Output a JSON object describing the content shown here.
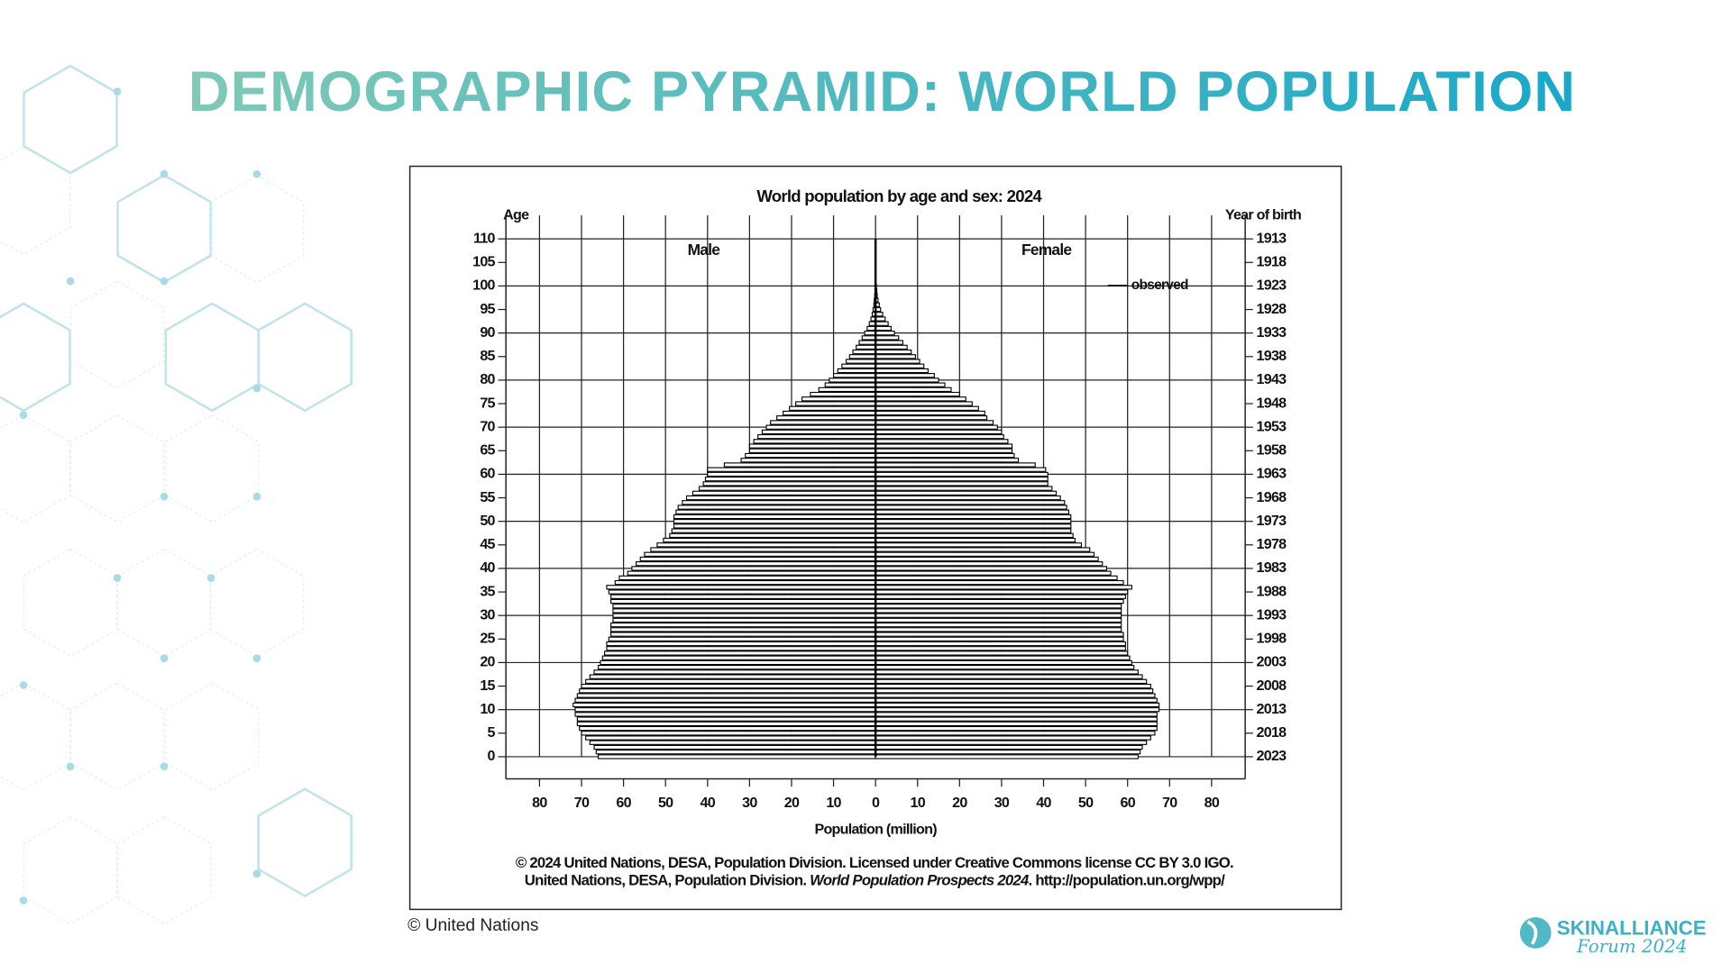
{
  "slide": {
    "title": "DEMOGRAPHIC PYRAMID: WORLD POPULATION",
    "credit": "© United Nations",
    "logo": {
      "name": "SKINALLIANCE",
      "subtitle": "Forum 2024"
    }
  },
  "chart_data": {
    "type": "pyramid",
    "title": "World population by age and sex: 2024",
    "ylabel": "Age",
    "y2label": "Year of birth",
    "xlabel": "Population (million)",
    "footer": [
      "© 2024 United Nations, DESA, Population Division. Licensed under Creative Commons license CC BY 3.0 IGO.",
      [
        "United Nations, DESA, Population Division. ",
        "World Population Prospects 2024",
        ". http://population.un.org/wpp/"
      ]
    ],
    "legend": {
      "label": "observed",
      "position": "top-right"
    },
    "xlim": [
      -88,
      88
    ],
    "xticks": [
      {
        "value": -80,
        "label": "80"
      },
      {
        "value": -70,
        "label": "70"
      },
      {
        "value": -60,
        "label": "60"
      },
      {
        "value": -50,
        "label": "50"
      },
      {
        "value": -40,
        "label": "40"
      },
      {
        "value": -30,
        "label": "30"
      },
      {
        "value": -20,
        "label": "20"
      },
      {
        "value": -10,
        "label": "10"
      },
      0,
      10,
      20,
      30,
      40,
      50,
      60,
      70,
      80
    ],
    "ylim": [
      -4.7,
      115
    ],
    "yticks": [
      0,
      5,
      10,
      15,
      20,
      25,
      30,
      35,
      40,
      45,
      50,
      55,
      60,
      65,
      70,
      75,
      80,
      85,
      90,
      95,
      100,
      105,
      110
    ],
    "y2lim": [
      2027.7,
      1908
    ],
    "y2ticks": [
      2023,
      2018,
      2013,
      2008,
      2003,
      1998,
      1993,
      1988,
      1983,
      1978,
      1973,
      1968,
      1963,
      1958,
      1953,
      1948,
      1943,
      1938,
      1933,
      1928,
      1923,
      1918,
      1913
    ],
    "grid": true,
    "ages": [
      0,
      1,
      2,
      3,
      4,
      5,
      6,
      7,
      8,
      9,
      10,
      11,
      12,
      13,
      14,
      15,
      16,
      17,
      18,
      19,
      20,
      21,
      22,
      23,
      24,
      25,
      26,
      27,
      28,
      29,
      30,
      31,
      32,
      33,
      34,
      35,
      36,
      37,
      38,
      39,
      40,
      41,
      42,
      43,
      44,
      45,
      46,
      47,
      48,
      49,
      50,
      51,
      52,
      53,
      54,
      55,
      56,
      57,
      58,
      59,
      60,
      61,
      62,
      63,
      64,
      65,
      66,
      67,
      68,
      69,
      70,
      71,
      72,
      73,
      74,
      75,
      76,
      77,
      78,
      79,
      80,
      81,
      82,
      83,
      84,
      85,
      86,
      87,
      88,
      89,
      90,
      91,
      92,
      93,
      94,
      95,
      96,
      97,
      98,
      99,
      100
    ],
    "series": [
      {
        "name": "Male",
        "side": "left",
        "color": "#000000",
        "values": [
          66,
          66.5,
          67,
          68,
          69,
          70,
          70.5,
          71,
          71,
          71.5,
          71.5,
          72,
          71.5,
          71,
          70.5,
          70,
          69,
          68,
          67,
          66,
          65.5,
          65,
          64.5,
          64,
          64,
          63.5,
          63,
          63,
          63,
          62.5,
          62.5,
          62.5,
          62.5,
          63,
          63,
          63.5,
          64,
          62,
          61,
          59,
          58,
          57,
          56,
          55,
          53.5,
          52,
          50.5,
          49,
          48.5,
          48,
          48,
          48,
          47.5,
          47,
          46,
          45,
          43.5,
          42,
          41,
          40.5,
          40,
          40,
          36,
          32,
          31,
          30,
          30,
          29,
          28,
          27,
          26,
          25,
          23.5,
          22,
          20.5,
          19,
          17.5,
          15.5,
          13.5,
          12,
          11,
          10,
          9,
          8,
          7,
          6.2,
          5.4,
          4.6,
          3.9,
          3.2,
          2.6,
          2,
          1.5,
          1.1,
          0.8,
          0.6,
          0.4,
          0.3,
          0.2,
          0.1,
          0.1
        ]
      },
      {
        "name": "Female",
        "side": "right",
        "color": "#000000",
        "values": [
          62.5,
          63,
          63.5,
          64.5,
          65.5,
          66.5,
          67,
          67,
          67,
          67,
          67.5,
          67.5,
          67,
          66.5,
          66,
          65.5,
          64.5,
          63.5,
          62.5,
          61.5,
          61,
          60.5,
          60,
          59.5,
          59.5,
          59,
          59,
          58.5,
          58.5,
          58.5,
          58.5,
          58.5,
          58.5,
          59,
          59.5,
          60,
          61,
          59,
          57.5,
          56,
          55,
          54,
          53,
          52,
          51,
          49,
          47.5,
          47,
          46.5,
          46.5,
          46.5,
          46.5,
          46,
          45.5,
          45,
          44,
          43,
          42,
          41,
          41,
          41,
          40.5,
          38,
          34,
          33,
          32.5,
          32.5,
          31.5,
          30.5,
          30,
          29,
          28,
          26.5,
          26,
          24.5,
          23,
          21.5,
          20,
          18,
          16.5,
          15,
          14,
          12.5,
          11.5,
          10.5,
          9.5,
          8.5,
          7.5,
          6.5,
          5.5,
          4.5,
          3.7,
          3,
          2.3,
          1.7,
          1.2,
          0.9,
          0.6,
          0.4,
          0.3,
          0.2
        ]
      }
    ]
  }
}
